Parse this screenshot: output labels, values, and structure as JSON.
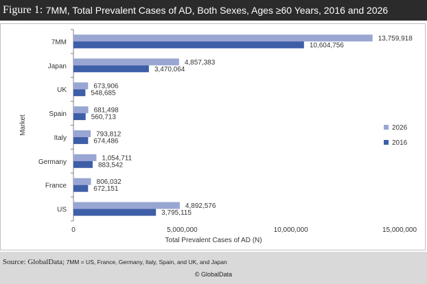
{
  "header": {
    "figure_label": "Figure 1:",
    "title": "7MM, Total Prevalent Cases of AD, Both Sexes,  Ages ≥60 Years, 2016 and 2026"
  },
  "chart_data": {
    "type": "bar",
    "orientation": "horizontal",
    "categories": [
      "7MM",
      "Japan",
      "UK",
      "Spain",
      "Italy",
      "Germany",
      "France",
      "US"
    ],
    "series": [
      {
        "name": "2026",
        "color": "#99a6d3",
        "values": [
          13759918,
          4857383,
          673906,
          681498,
          793812,
          1054711,
          806032,
          4892576
        ],
        "labels": [
          "13,759,918",
          "4,857,383",
          "673,906",
          "681,498",
          "793,812",
          "1,054,711",
          "806,032",
          "4,892,576"
        ]
      },
      {
        "name": "2016",
        "color": "#3f5ea8",
        "values": [
          10604756,
          3470064,
          548685,
          560713,
          674486,
          883542,
          672151,
          3795115
        ],
        "labels": [
          "10,604,756",
          "3,470,064",
          "548,685",
          "560,713",
          "674,486",
          "883,542",
          "672,151",
          "3,795,115"
        ]
      }
    ],
    "xlabel": "Total Prevalent Cases of AD (N)",
    "ylabel": "Market",
    "xlim": [
      0,
      15000000
    ],
    "xticks": [
      0,
      5000000,
      10000000,
      15000000
    ],
    "xtick_labels": [
      "0",
      "5,000,000",
      "10,000,000",
      "15,000,000"
    ],
    "grid": false,
    "legend": "right"
  },
  "footer": {
    "source_label": "Source:",
    "source_org": " GlobalData;",
    "source_note": " 7MM = US, France, Germany, Italy, Spain, and UK, and Japan",
    "copyright": "© GlobalData"
  }
}
